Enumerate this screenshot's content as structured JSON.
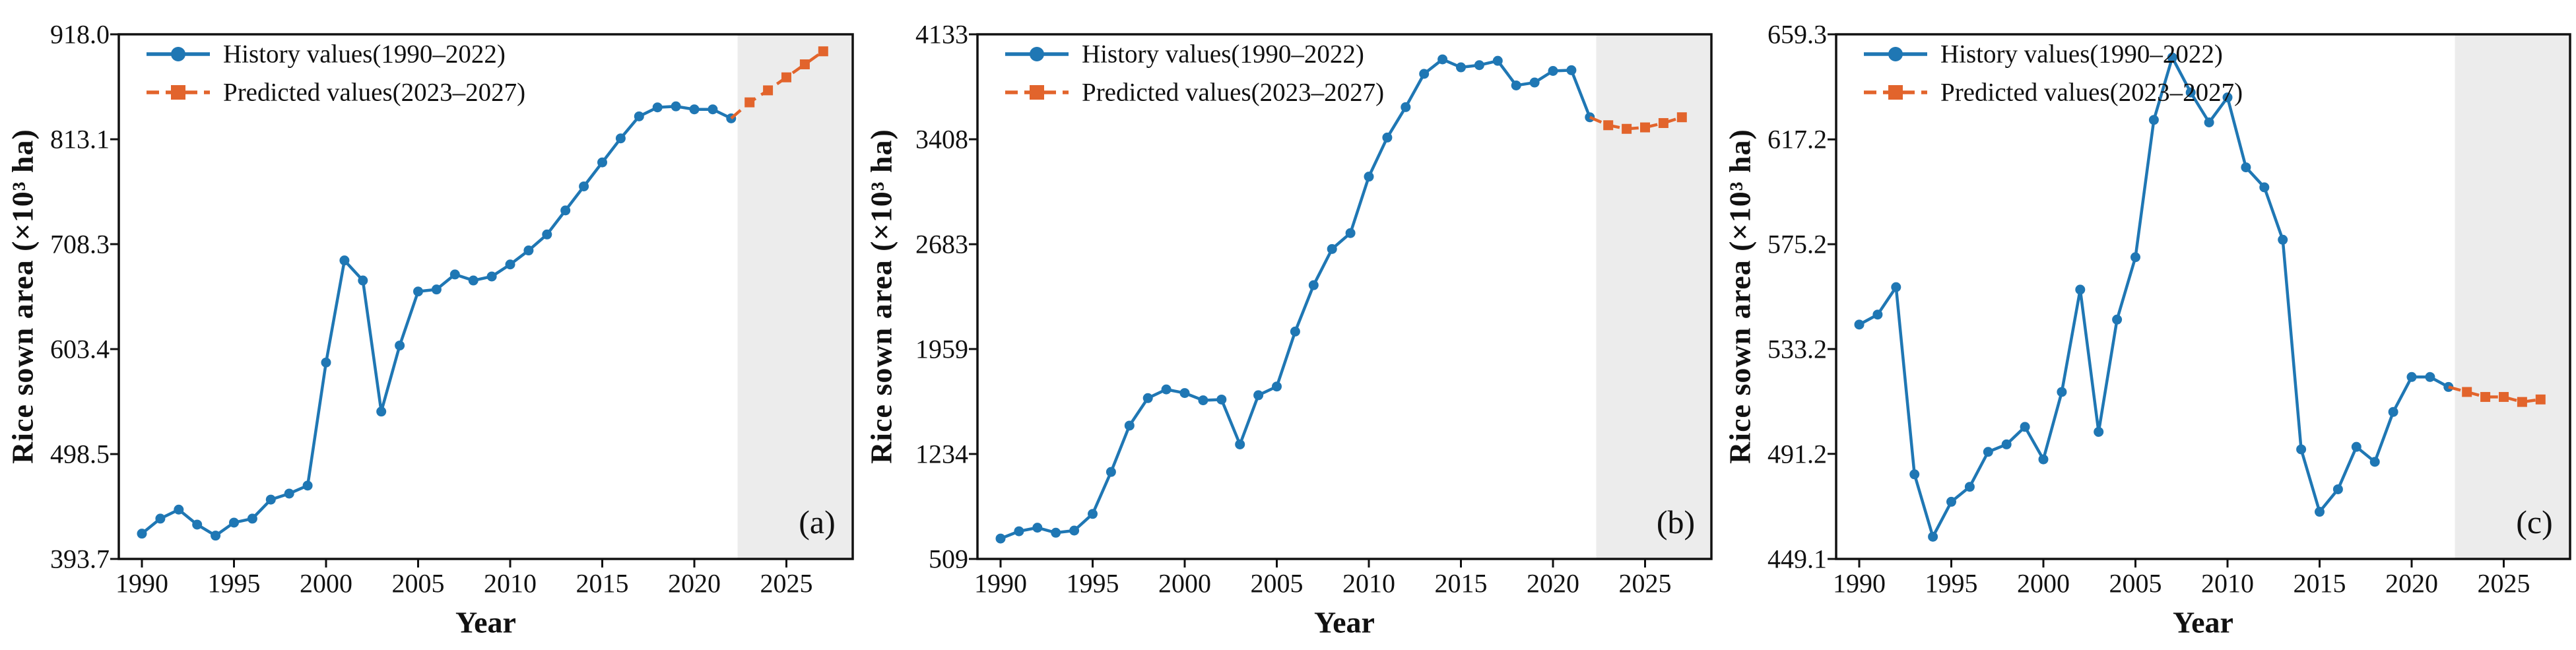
{
  "style": {
    "history_color": "#1f77b4",
    "predicted_color": "#e2642c",
    "shade_color": "#ececec",
    "axis_color": "#111111",
    "background_color": "#ffffff"
  },
  "chart_data": [
    {
      "type": "line",
      "panel_label": "(a)",
      "xlabel": "Year",
      "ylabel": "Rice sown area (×10³ ha)",
      "x_ticks": [
        1990,
        1995,
        2000,
        2005,
        2010,
        2015,
        2020,
        2025
      ],
      "x_tick_labels": [
        "1990",
        "1995",
        "2000",
        "2005",
        "2010",
        "2015",
        "2020",
        "2025"
      ],
      "y_ticks": [
        393.7,
        498.5,
        603.4,
        708.3,
        813.1,
        918.0
      ],
      "y_tick_labels": [
        "393.7",
        "498.5",
        "603.4",
        "708.3",
        "813.1",
        "918.0"
      ],
      "xlim": [
        1988.75,
        2028.65
      ],
      "ylim": [
        393.7,
        918.0
      ],
      "shade_from_year": 2022.35,
      "legend_position": "upper-left",
      "grid": false,
      "series": [
        {
          "name": "History values(1990–2022)",
          "role": "history",
          "marker": "circle",
          "line": "solid",
          "x": [
            1990,
            1991,
            1992,
            1993,
            1994,
            1995,
            1996,
            1997,
            1998,
            1999,
            2000,
            2001,
            2002,
            2003,
            2004,
            2005,
            2006,
            2007,
            2008,
            2009,
            2010,
            2011,
            2012,
            2013,
            2014,
            2015,
            2016,
            2017,
            2018,
            2019,
            2020,
            2021,
            2022
          ],
          "values": [
            419,
            434,
            443,
            428,
            417,
            430,
            434,
            453,
            459,
            467,
            590,
            692,
            672,
            541,
            607,
            661,
            663,
            678,
            672,
            676,
            688,
            702,
            718,
            742,
            766,
            790,
            814,
            836,
            845,
            846,
            843,
            843,
            834
          ]
        },
        {
          "name": "Predicted values(2023–2027)",
          "role": "predicted",
          "marker": "square",
          "line": "dashed",
          "x": [
            2023,
            2024,
            2025,
            2026,
            2027
          ],
          "values": [
            850,
            862,
            875,
            888,
            901
          ]
        }
      ]
    },
    {
      "type": "line",
      "panel_label": "(b)",
      "xlabel": "Year",
      "ylabel": "Rice sown area (×10³ ha)",
      "x_ticks": [
        1990,
        1995,
        2000,
        2005,
        2010,
        2015,
        2020,
        2025
      ],
      "x_tick_labels": [
        "1990",
        "1995",
        "2000",
        "2005",
        "2010",
        "2015",
        "2020",
        "2025"
      ],
      "y_ticks": [
        509,
        1234,
        1959,
        2683,
        3408,
        4133
      ],
      "y_tick_labels": [
        "509",
        "1234",
        "1959",
        "2683",
        "3408",
        "4133"
      ],
      "xlim": [
        1988.75,
        2028.65
      ],
      "ylim": [
        509,
        4133
      ],
      "shade_from_year": 2022.35,
      "legend_position": "upper-left",
      "grid": false,
      "series": [
        {
          "name": "History values(1990–2022)",
          "role": "history",
          "marker": "circle",
          "line": "solid",
          "x": [
            1990,
            1991,
            1992,
            1993,
            1994,
            1995,
            1996,
            1997,
            1998,
            1999,
            2000,
            2001,
            2002,
            2003,
            2004,
            2005,
            2006,
            2007,
            2008,
            2009,
            2010,
            2011,
            2012,
            2013,
            2014,
            2015,
            2016,
            2017,
            2018,
            2019,
            2020,
            2021,
            2022
          ],
          "values": [
            650,
            700,
            725,
            690,
            705,
            820,
            1110,
            1430,
            1620,
            1680,
            1655,
            1605,
            1610,
            1300,
            1640,
            1700,
            2080,
            2400,
            2650,
            2760,
            3150,
            3420,
            3630,
            3860,
            3960,
            3905,
            3920,
            3950,
            3780,
            3800,
            3880,
            3885,
            3560
          ]
        },
        {
          "name": "Predicted values(2023–2027)",
          "role": "predicted",
          "marker": "square",
          "line": "dashed",
          "x": [
            2023,
            2024,
            2025,
            2026,
            2027
          ],
          "values": [
            3505,
            3480,
            3490,
            3520,
            3560
          ]
        }
      ]
    },
    {
      "type": "line",
      "panel_label": "(c)",
      "xlabel": "Year",
      "ylabel": "Rice sown area (×10³ ha)",
      "x_ticks": [
        1990,
        1995,
        2000,
        2005,
        2010,
        2015,
        2020,
        2025
      ],
      "x_tick_labels": [
        "1990",
        "1995",
        "2000",
        "2005",
        "2010",
        "2015",
        "2020",
        "2025"
      ],
      "y_ticks": [
        449.1,
        491.2,
        533.2,
        575.2,
        617.2,
        659.3
      ],
      "y_tick_labels": [
        "449.1",
        "491.2",
        "533.2",
        "575.2",
        "617.2",
        "659.3"
      ],
      "xlim": [
        1988.75,
        2028.65
      ],
      "ylim": [
        449.1,
        659.3
      ],
      "shade_from_year": 2022.35,
      "legend_position": "upper-left",
      "grid": false,
      "series": [
        {
          "name": "History values(1990–2022)",
          "role": "history",
          "marker": "circle",
          "line": "solid",
          "x": [
            1990,
            1991,
            1992,
            1993,
            1994,
            1995,
            1996,
            1997,
            1998,
            1999,
            2000,
            2001,
            2002,
            2003,
            2004,
            2005,
            2006,
            2007,
            2008,
            2009,
            2010,
            2011,
            2012,
            2013,
            2014,
            2015,
            2016,
            2017,
            2018,
            2019,
            2020,
            2021,
            2022
          ],
          "values": [
            543,
            547,
            558,
            483,
            458,
            472,
            478,
            492,
            495,
            502,
            489,
            516,
            557,
            500,
            545,
            570,
            625,
            650,
            636,
            624,
            634,
            606,
            598,
            577,
            493,
            468,
            477,
            494,
            488,
            508,
            522,
            522,
            518
          ]
        },
        {
          "name": "Predicted values(2023–2027)",
          "role": "predicted",
          "marker": "square",
          "line": "dashed",
          "x": [
            2023,
            2024,
            2025,
            2026,
            2027
          ],
          "values": [
            516,
            514,
            514,
            512,
            513
          ]
        }
      ]
    }
  ]
}
